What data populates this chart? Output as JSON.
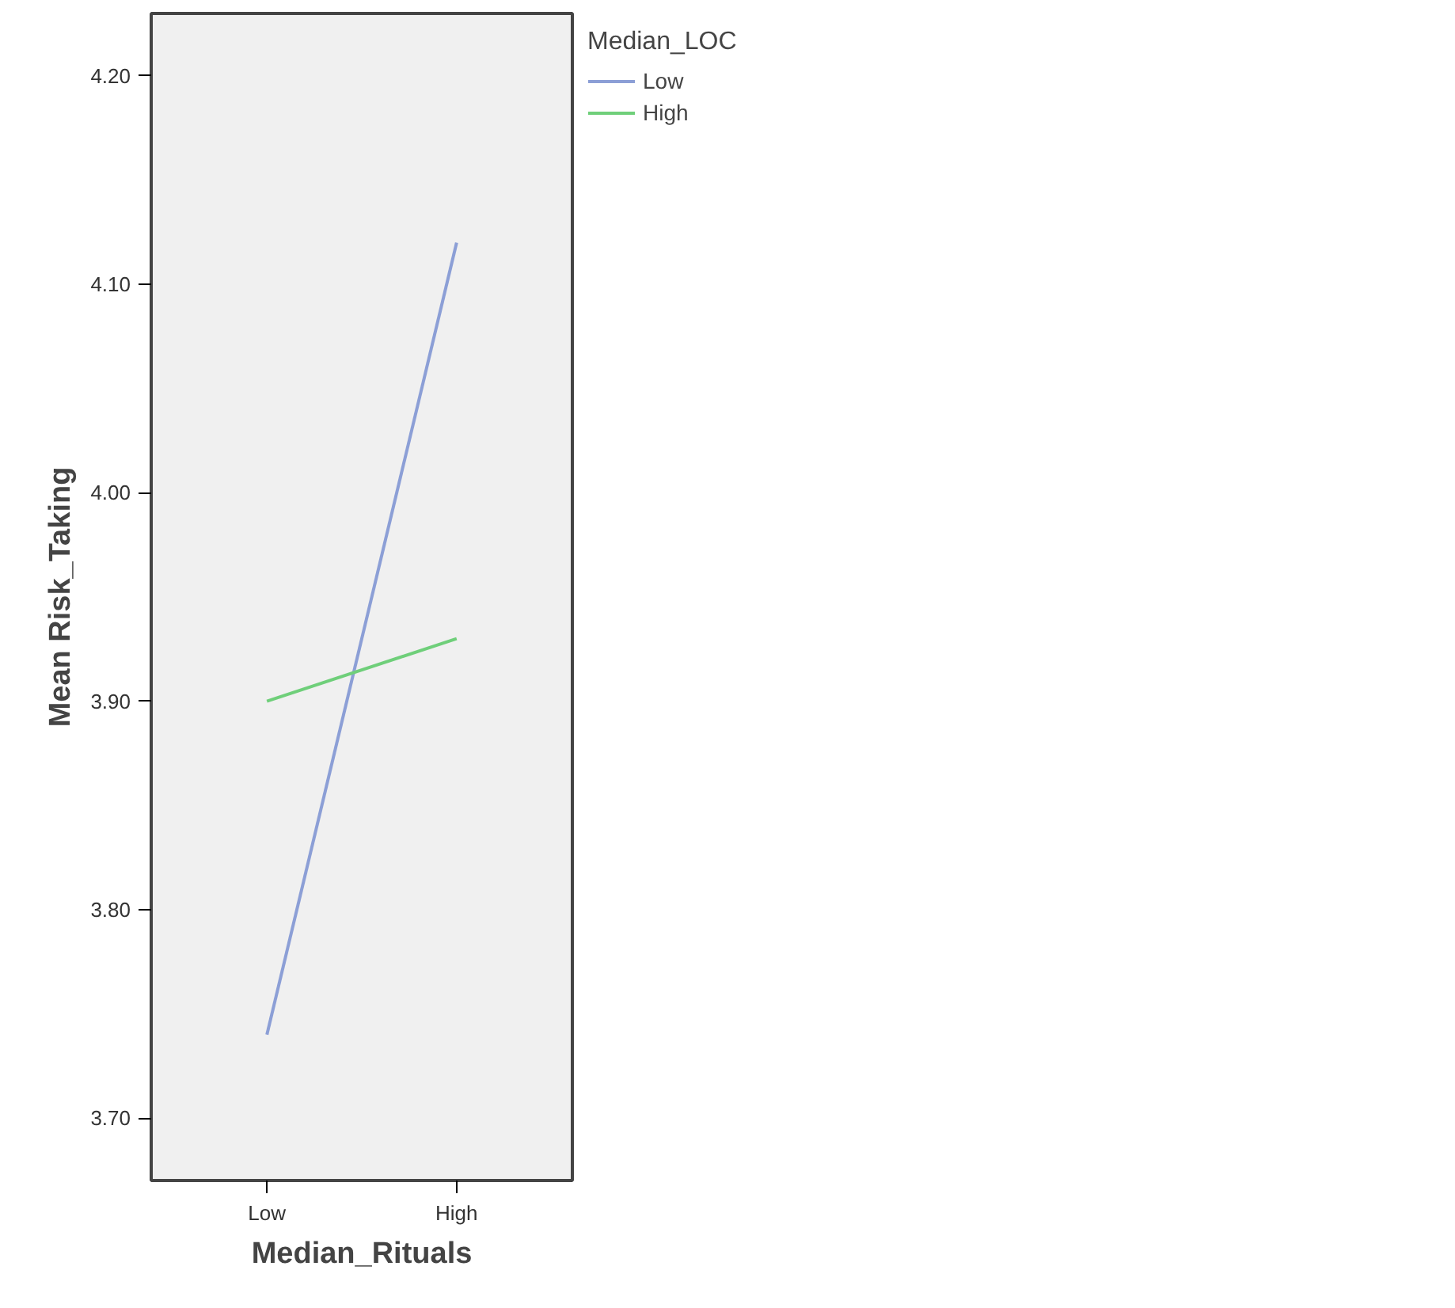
{
  "chart_data": {
    "type": "line",
    "xlabel": "Median_Rituals",
    "ylabel": "Mean Risk_Taking",
    "legend_title": "Median_LOC",
    "categories": [
      "Low",
      "High"
    ],
    "series": [
      {
        "name": "Low",
        "color": "#8c9fd6",
        "values": [
          3.74,
          4.12
        ]
      },
      {
        "name": "High",
        "color": "#6fcf7a",
        "values": [
          3.9,
          3.93
        ]
      }
    ],
    "ylim": [
      3.67,
      4.23
    ],
    "yticks": [
      {
        "value": 3.7,
        "label": "3.70"
      },
      {
        "value": 3.8,
        "label": "3.80"
      },
      {
        "value": 3.9,
        "label": "3.90"
      },
      {
        "value": 4.0,
        "label": "4.00"
      },
      {
        "value": 4.1,
        "label": "4.10"
      },
      {
        "value": 4.2,
        "label": "4.20"
      }
    ],
    "grid": false,
    "legend": "top right",
    "marker": "none",
    "line_style": "solid"
  }
}
